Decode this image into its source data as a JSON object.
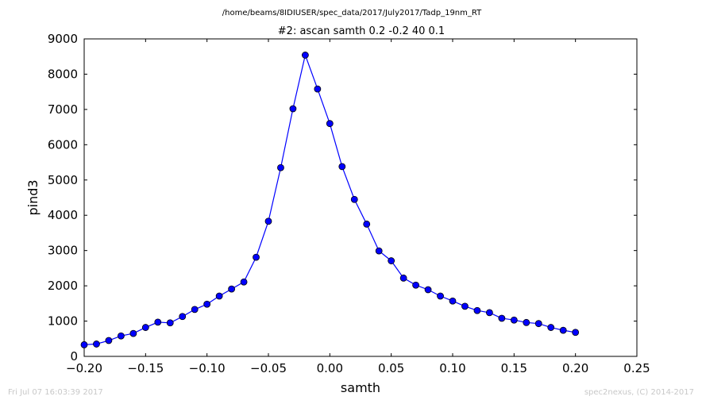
{
  "chart_data": {
    "type": "line",
    "suptitle": "/home/beams/8IDIUSER/spec_data/2017/July2017/Tadp_19nm_RT",
    "title": "#2: ascan  samth 0.2 -0.2  40 0.1",
    "xlabel": "samth",
    "ylabel": "pind3",
    "xlim": [
      -0.2,
      0.25
    ],
    "ylim": [
      0,
      9000
    ],
    "xticks": [
      "−0.20",
      "−0.15",
      "−0.10",
      "−0.05",
      "0.00",
      "0.05",
      "0.10",
      "0.15",
      "0.20",
      "0.25"
    ],
    "yticks": [
      "0",
      "1000",
      "2000",
      "3000",
      "4000",
      "5000",
      "6000",
      "7000",
      "8000",
      "9000"
    ],
    "grid": false,
    "series": [
      {
        "color": "#0000ff",
        "marker": "circle",
        "x": [
          -0.2,
          -0.19,
          -0.18,
          -0.17,
          -0.16,
          -0.15,
          -0.14,
          -0.13,
          -0.12,
          -0.11,
          -0.1,
          -0.09,
          -0.08,
          -0.07,
          -0.06,
          -0.05,
          -0.04,
          -0.03,
          -0.02,
          -0.01,
          0.0,
          0.01,
          0.02,
          0.03,
          0.04,
          0.05,
          0.06,
          0.07,
          0.08,
          0.09,
          0.1,
          0.11,
          0.12,
          0.13,
          0.14,
          0.15,
          0.16,
          0.17,
          0.18,
          0.19,
          0.2
        ],
        "y": [
          330,
          350,
          450,
          580,
          650,
          820,
          970,
          950,
          1130,
          1330,
          1480,
          1710,
          1910,
          2110,
          2810,
          3830,
          5350,
          7020,
          8540,
          7580,
          6600,
          5380,
          4450,
          3750,
          2990,
          2710,
          2220,
          2020,
          1890,
          1710,
          1570,
          1420,
          1300,
          1240,
          1080,
          1030,
          960,
          930,
          820,
          740,
          680
        ]
      }
    ]
  },
  "footer": {
    "left": "Fri Jul 07 16:03:39 2017",
    "right": "spec2nexus, (C) 2014-2017"
  }
}
